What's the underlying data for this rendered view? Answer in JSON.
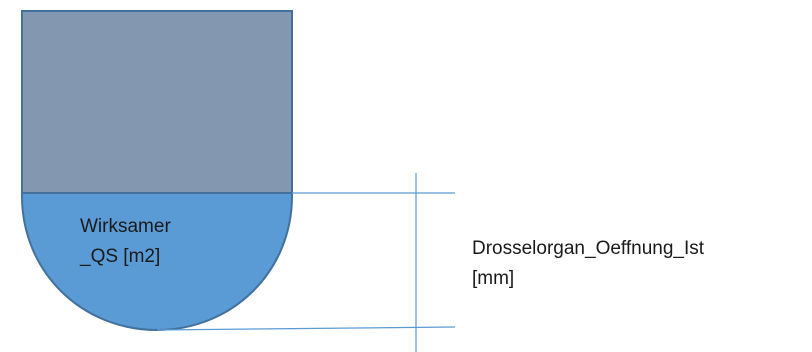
{
  "diagram": {
    "area_label": {
      "line1": "Wirksamer",
      "line2": "_QS [m2]"
    },
    "opening_label": {
      "line1": "Drosselorgan_Oeffnung_Ist",
      "line2": "[mm]"
    }
  },
  "colors": {
    "upper_rect_fill": "#8497b0",
    "lower_semicircle_fill": "#5b9bd5",
    "outline": "#41719c",
    "dimension_line": "#5b9bd5"
  }
}
